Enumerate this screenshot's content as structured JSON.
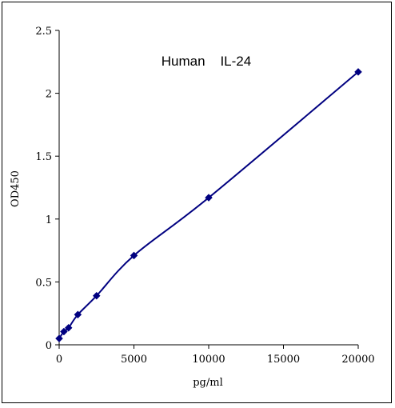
{
  "chart_data": {
    "type": "line",
    "title": "Human    IL-24",
    "xlabel": "pg/ml",
    "ylabel": "OD450",
    "xlim": [
      0,
      20000
    ],
    "ylim": [
      0,
      2.5
    ],
    "x_ticks": [
      0,
      5000,
      10000,
      15000,
      20000
    ],
    "x_tick_labels": [
      "0",
      "5000",
      "10000",
      "15000",
      "20000"
    ],
    "y_ticks": [
      0,
      0.5,
      1,
      1.5,
      2,
      2.5
    ],
    "y_tick_labels": [
      "0",
      "0.5",
      "1",
      "1.5",
      "2",
      "2.5"
    ],
    "grid": false,
    "legend": false,
    "series": [
      {
        "color": "#000080",
        "marker": "diamond",
        "smooth": true,
        "points": [
          {
            "x": 0,
            "y": 0.05
          },
          {
            "x": 312.5,
            "y": 0.105
          },
          {
            "x": 625,
            "y": 0.135
          },
          {
            "x": 1250,
            "y": 0.24
          },
          {
            "x": 2500,
            "y": 0.39
          },
          {
            "x": 5000,
            "y": 0.71
          },
          {
            "x": 10000,
            "y": 1.17
          },
          {
            "x": 20000,
            "y": 2.17
          }
        ]
      }
    ]
  }
}
